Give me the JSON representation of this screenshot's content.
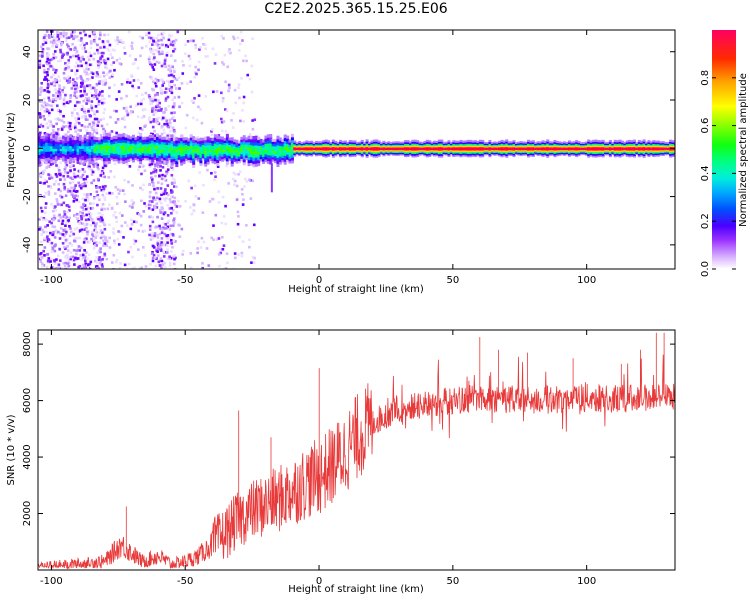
{
  "title": "C2E2.2025.365.15.25.E06",
  "spectrogram": {
    "type": "heatmap",
    "xlabel": "Height of straight line (km)",
    "ylabel": "Frequency (Hz)",
    "xlim": [
      -105,
      133
    ],
    "ylim": [
      -50,
      49
    ],
    "xticks": [
      -100,
      -50,
      0,
      50,
      100
    ],
    "yticks": [
      -40,
      -20,
      0,
      20,
      40
    ],
    "colorbar": {
      "label": "Normalized spectral amplitude",
      "range": [
        0,
        1
      ],
      "ticks": [
        "0.0",
        "0.2",
        "0.4",
        "0.6",
        "0.8"
      ],
      "colors": [
        "#ffffff",
        "#d9b3ff",
        "#9b33ff",
        "#6b00ff",
        "#2a00ff",
        "#0066ff",
        "#00ccff",
        "#00ffb0",
        "#00ff44",
        "#66ff00",
        "#ccff00",
        "#ffcc00",
        "#ff7700",
        "#ff2200",
        "#ff0055"
      ]
    },
    "band_center_hz": 0,
    "band_halfwidth_hz_left": 5,
    "band_halfwidth_hz_right": 3
  },
  "snr": {
    "type": "line",
    "xlabel": "Height of straight line (km)",
    "ylabel": "SNR (10 * v/v)",
    "xlim": [
      -105,
      133
    ],
    "ylim": [
      0,
      8500
    ],
    "xticks": [
      -100,
      -50,
      0,
      50,
      100
    ],
    "yticks": [
      2000,
      4000,
      6000,
      8000
    ],
    "line_color": "#e83a3a",
    "trend": [
      [
        -105,
        100
      ],
      [
        -90,
        200
      ],
      [
        -80,
        300
      ],
      [
        -74,
        900
      ],
      [
        -70,
        600
      ],
      [
        -66,
        300
      ],
      [
        -60,
        500
      ],
      [
        -55,
        200
      ],
      [
        -50,
        300
      ],
      [
        -45,
        500
      ],
      [
        -40,
        900
      ],
      [
        -35,
        1300
      ],
      [
        -30,
        1800
      ],
      [
        -25,
        2100
      ],
      [
        -20,
        2300
      ],
      [
        -15,
        2500
      ],
      [
        -10,
        2800
      ],
      [
        -5,
        3100
      ],
      [
        0,
        3300
      ],
      [
        5,
        3700
      ],
      [
        10,
        4200
      ],
      [
        15,
        4800
      ],
      [
        20,
        5200
      ],
      [
        25,
        5500
      ],
      [
        30,
        5700
      ],
      [
        40,
        5850
      ],
      [
        50,
        6000
      ],
      [
        60,
        6100
      ],
      [
        70,
        6050
      ],
      [
        80,
        6000
      ],
      [
        90,
        6050
      ],
      [
        100,
        6100
      ],
      [
        110,
        6050
      ],
      [
        120,
        6100
      ],
      [
        133,
        6150
      ]
    ],
    "spikes": [
      [
        -72,
        2250
      ],
      [
        -30,
        5650
      ],
      [
        -18,
        4700
      ],
      [
        0,
        7150
      ],
      [
        60,
        8250
      ],
      [
        67,
        7800
      ],
      [
        78,
        7700
      ],
      [
        95,
        7500
      ],
      [
        113,
        7300
      ],
      [
        120,
        7800
      ],
      [
        126,
        8400
      ],
      [
        129,
        8400
      ]
    ]
  }
}
